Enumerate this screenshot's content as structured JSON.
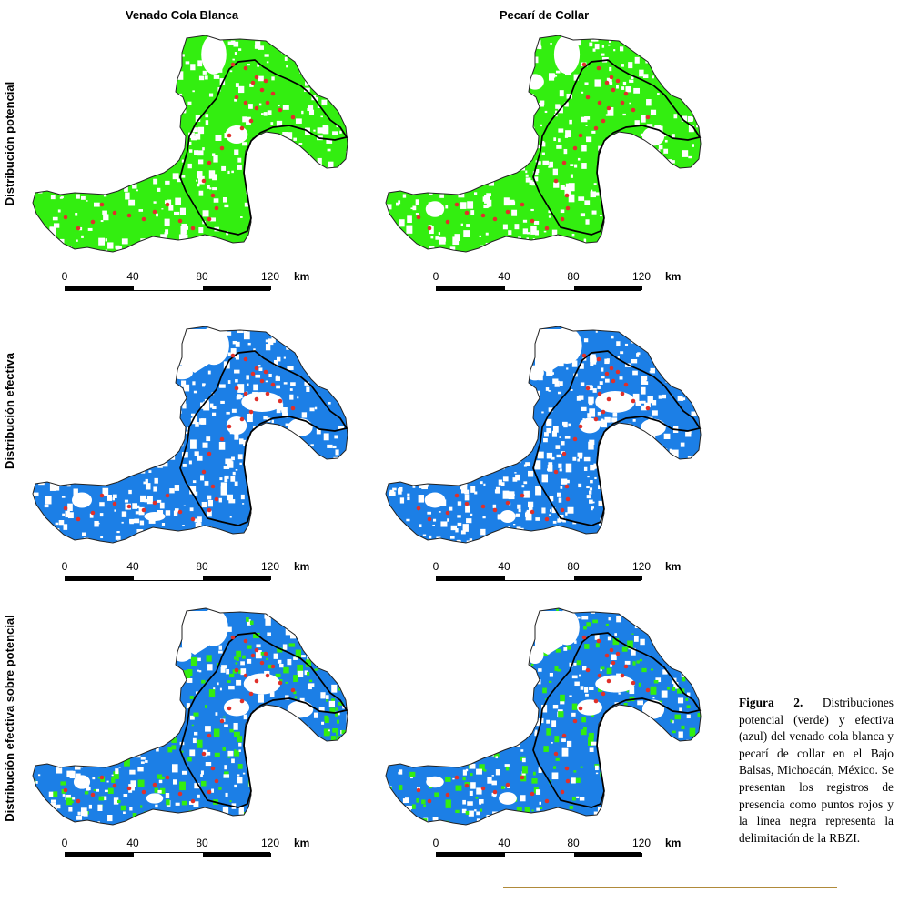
{
  "columns": [
    "Venado Cola Blanca",
    "Pecarí de Collar"
  ],
  "rows": [
    "Distribución potencial",
    "Distribución efectiva",
    "Distribución efectiva sobre potencial"
  ],
  "scale": {
    "ticks": [
      "0",
      "40",
      "80",
      "120"
    ],
    "unit": "km"
  },
  "caption": {
    "label": "Figura 2.",
    "text": "Distribuciones potencial (verde) y efectiva (azul) del venado cola blanca y pecarí de collar en el Bajo Balsas, Michoacán, México. Se presentan los registros de presencia como puntos rojos y la línea negra representa la delimitación de la RBZI."
  },
  "colors": {
    "potential": "#33ee10",
    "effective": "#1c7fe6",
    "records": "#e0302a",
    "boundary": "#000000",
    "rule": "#b08a3a"
  },
  "legend_semantics": {
    "potential_color_name": "verde",
    "effective_color_name": "azul",
    "records_shape": "puntos rojos",
    "boundary_shape": "línea negra"
  }
}
